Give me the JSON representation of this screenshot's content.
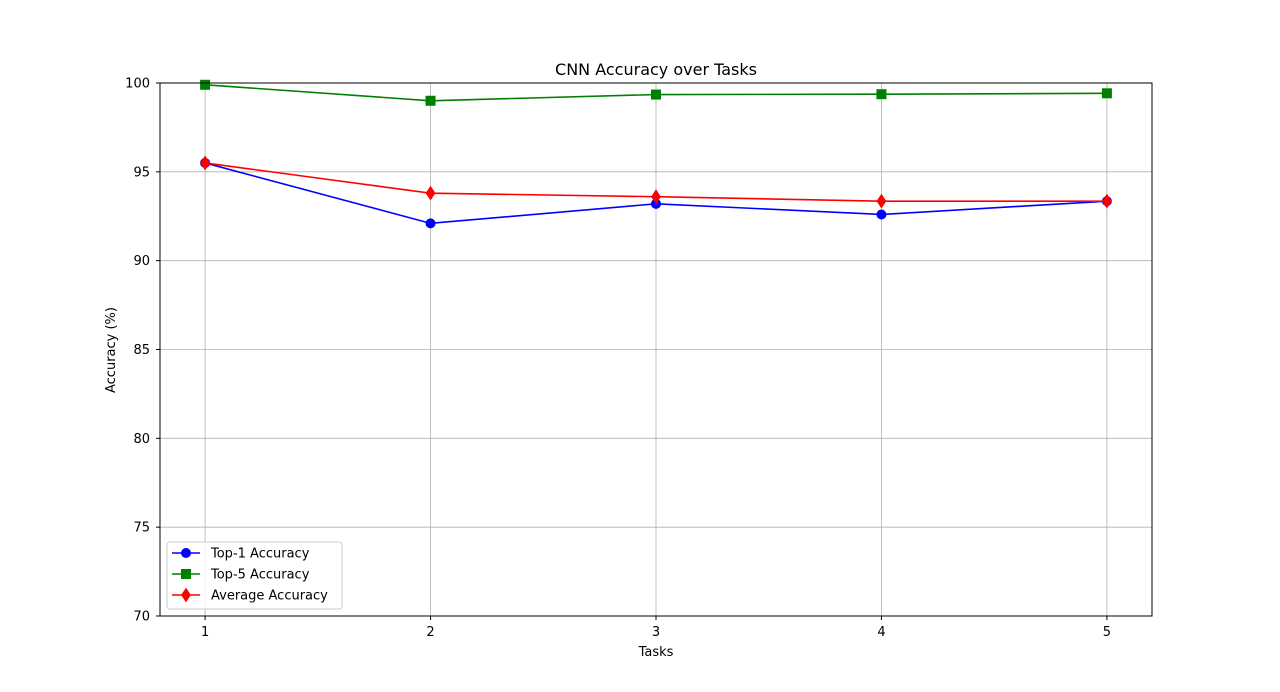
{
  "chart_data": {
    "type": "line",
    "title": "CNN Accuracy over Tasks",
    "xlabel": "Tasks",
    "ylabel": "Accuracy (%)",
    "x": [
      1,
      2,
      3,
      4,
      5
    ],
    "x_ticks": [
      "1",
      "2",
      "3",
      "4",
      "5"
    ],
    "y_ticks": [
      "70",
      "75",
      "80",
      "85",
      "90",
      "95",
      "100"
    ],
    "ylim": [
      70,
      100
    ],
    "xlim": [
      0.8,
      5.2
    ],
    "grid": true,
    "legend_position": "lower-left",
    "series": [
      {
        "name": "Top-1 Accuracy",
        "color": "#0000ff",
        "marker": "circle",
        "values": [
          95.5,
          92.1,
          93.2,
          92.6,
          93.35
        ]
      },
      {
        "name": "Top-5 Accuracy",
        "color": "#008000",
        "marker": "square",
        "values": [
          99.9,
          99.0,
          99.35,
          99.37,
          99.42
        ]
      },
      {
        "name": "Average Accuracy",
        "color": "#ff0000",
        "marker": "diamond",
        "values": [
          95.5,
          93.8,
          93.6,
          93.35,
          93.35
        ]
      }
    ]
  }
}
